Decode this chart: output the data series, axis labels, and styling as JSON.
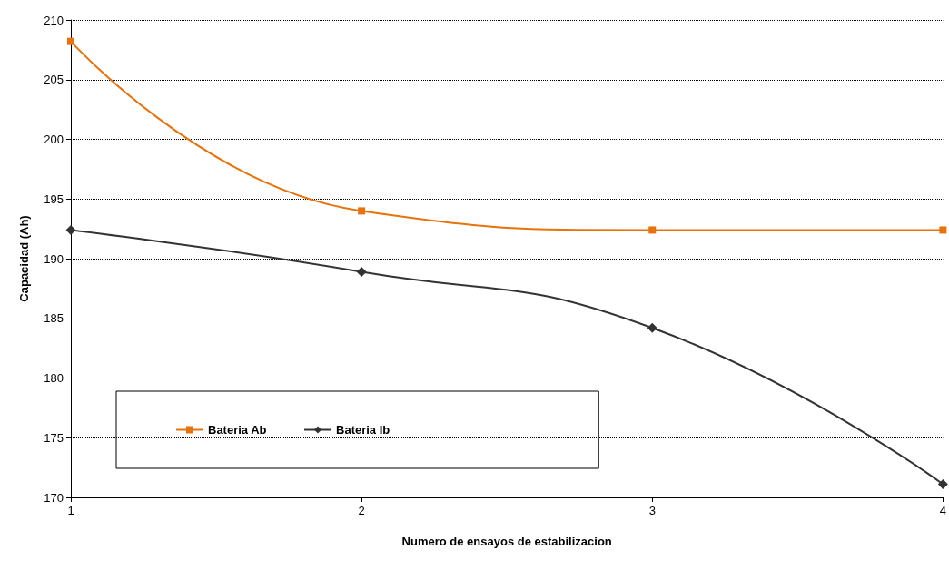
{
  "chart_data": {
    "type": "line",
    "xlabel": "Numero de ensayos de estabilizacion",
    "ylabel": "Capacidad (Ah)",
    "x": [
      1,
      2,
      3,
      4
    ],
    "series": [
      {
        "name": "Bateria Ab",
        "color": "#e8730c",
        "marker": "square",
        "values": [
          208.2,
          194.0,
          192.4,
          192.4
        ]
      },
      {
        "name": "Bateria Ib",
        "color": "#333333",
        "marker": "diamond",
        "values": [
          192.4,
          188.9,
          184.2,
          171.1
        ]
      }
    ],
    "xlim": [
      1,
      4
    ],
    "xticks": [
      1,
      2,
      3,
      4
    ],
    "ylim": [
      170,
      210
    ],
    "yticks": [
      170,
      175,
      180,
      185,
      190,
      195,
      200,
      205,
      210
    ],
    "grid": "y",
    "legend": "bottom left",
    "line_style": "solid"
  }
}
